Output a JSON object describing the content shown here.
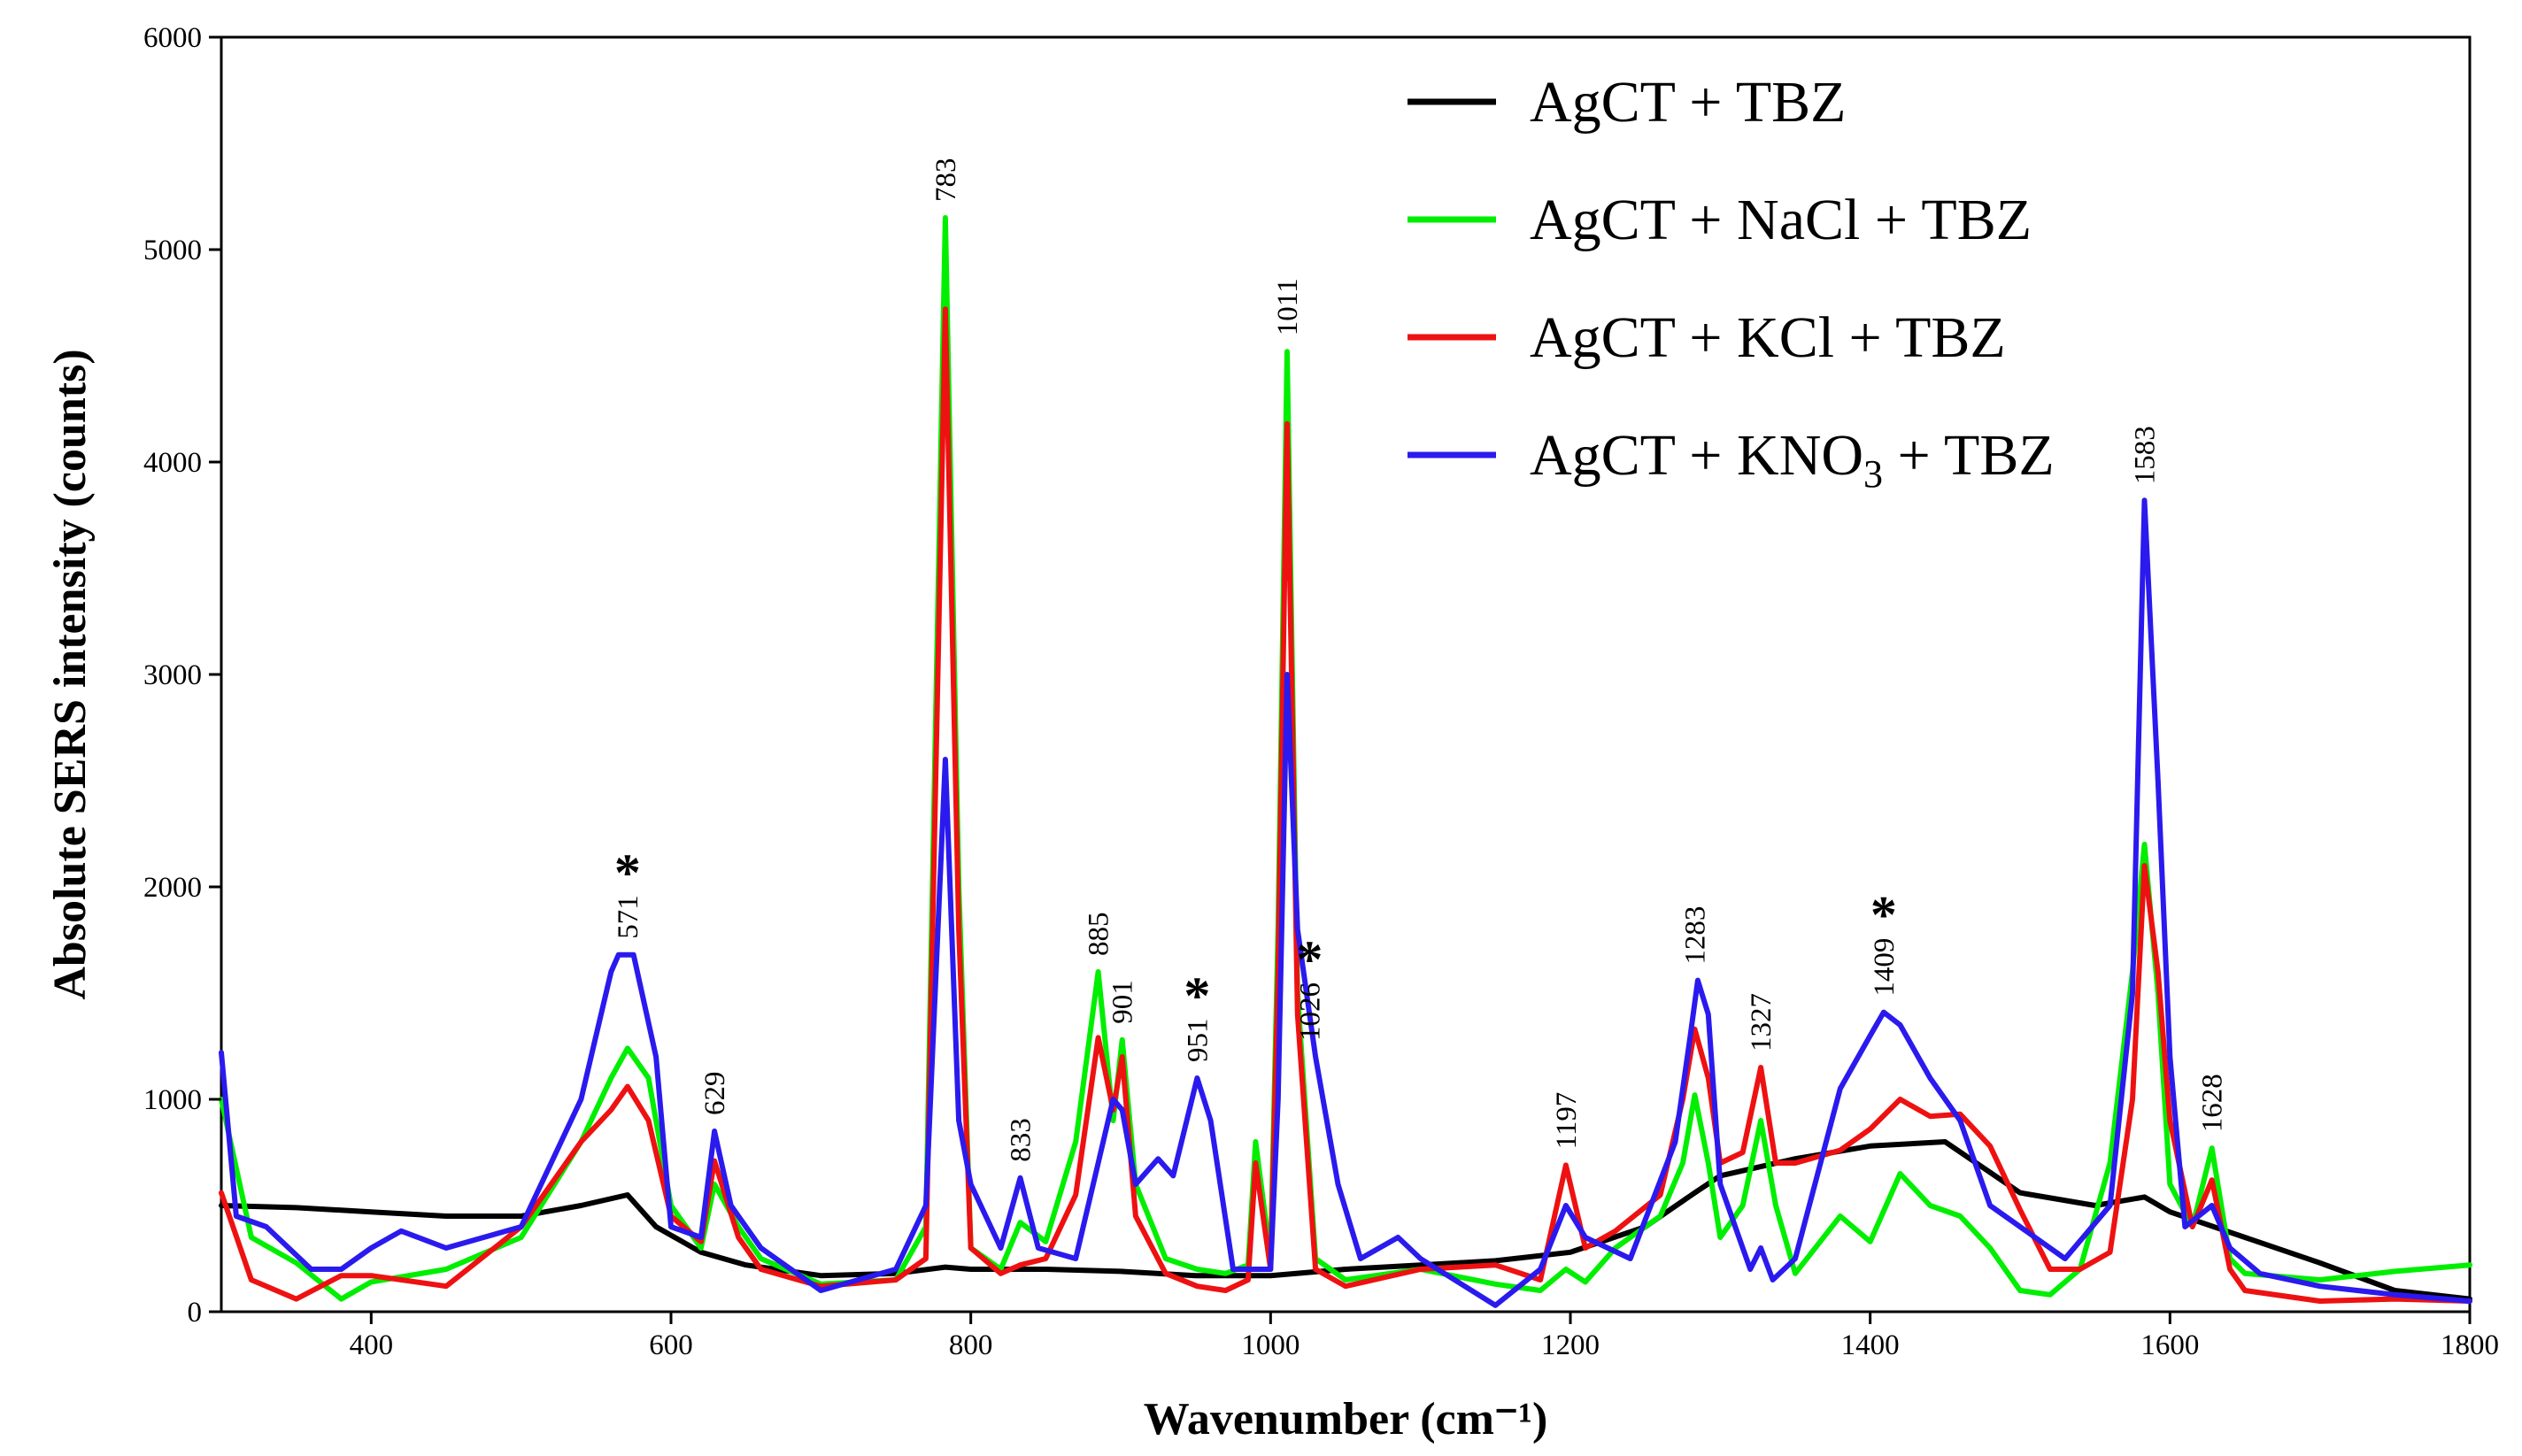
{
  "chart_data": {
    "type": "line",
    "title": "",
    "xlabel": "Wavenumber (cm⁻¹)",
    "ylabel": "Absolute SERS intensity (counts)",
    "xlim": [
      300,
      1800
    ],
    "ylim": [
      0,
      6000
    ],
    "xticks": [
      400,
      600,
      800,
      1000,
      1200,
      1400,
      1600,
      1800
    ],
    "yticks": [
      0,
      1000,
      2000,
      3000,
      4000,
      5000,
      6000
    ],
    "legend_position": "top-right",
    "colors": {
      "black": "#000000",
      "green": "#00ee00",
      "red": "#ee1111",
      "blue": "#2a1aee"
    },
    "legend": [
      {
        "color_key": "black",
        "main": "AgCT + TBZ",
        "sub": "",
        "tail": ""
      },
      {
        "color_key": "green",
        "main": "AgCT + NaCl + TBZ",
        "sub": "",
        "tail": ""
      },
      {
        "color_key": "red",
        "main": "AgCT + KCl + TBZ",
        "sub": "",
        "tail": ""
      },
      {
        "color_key": "blue",
        "main": "AgCT + KNO",
        "sub": "3",
        "tail": " + TBZ"
      }
    ],
    "series": [
      {
        "name": "AgCT + TBZ",
        "color_key": "black",
        "x": [
          300,
          350,
          400,
          450,
          500,
          540,
          571,
          590,
          620,
          650,
          700,
          750,
          783,
          800,
          850,
          900,
          950,
          1000,
          1050,
          1100,
          1150,
          1200,
          1250,
          1283,
          1300,
          1350,
          1400,
          1450,
          1500,
          1550,
          1583,
          1600,
          1650,
          1700,
          1750,
          1800
        ],
        "y": [
          500,
          490,
          470,
          450,
          450,
          500,
          550,
          400,
          280,
          220,
          170,
          180,
          210,
          200,
          200,
          190,
          170,
          170,
          200,
          220,
          240,
          280,
          400,
          560,
          640,
          720,
          780,
          800,
          560,
          500,
          540,
          470,
          350,
          230,
          100,
          60
        ]
      },
      {
        "name": "AgCT + NaCl + TBZ",
        "color_key": "green",
        "x": [
          300,
          320,
          350,
          380,
          400,
          450,
          500,
          540,
          560,
          571,
          585,
          600,
          620,
          629,
          645,
          660,
          700,
          750,
          770,
          783,
          792,
          800,
          820,
          833,
          850,
          870,
          885,
          895,
          901,
          910,
          930,
          951,
          970,
          985,
          990,
          1000,
          1005,
          1011,
          1018,
          1030,
          1050,
          1100,
          1150,
          1180,
          1197,
          1210,
          1230,
          1260,
          1275,
          1283,
          1292,
          1300,
          1315,
          1327,
          1337,
          1350,
          1380,
          1400,
          1420,
          1440,
          1460,
          1480,
          1500,
          1520,
          1540,
          1560,
          1575,
          1583,
          1592,
          1600,
          1615,
          1628,
          1640,
          1650,
          1700,
          1750,
          1800
        ],
        "y": [
          1000,
          350,
          230,
          60,
          140,
          200,
          350,
          800,
          1100,
          1240,
          1100,
          500,
          300,
          600,
          400,
          250,
          130,
          150,
          400,
          5150,
          2000,
          300,
          200,
          420,
          330,
          800,
          1600,
          900,
          1280,
          600,
          250,
          200,
          180,
          220,
          800,
          250,
          1800,
          4520,
          1500,
          250,
          150,
          200,
          130,
          100,
          200,
          140,
          300,
          450,
          700,
          1020,
          700,
          350,
          500,
          900,
          500,
          180,
          450,
          330,
          650,
          500,
          450,
          300,
          100,
          80,
          200,
          700,
          1600,
          2200,
          1500,
          600,
          400,
          770,
          250,
          180,
          150,
          190,
          220
        ]
      },
      {
        "name": "AgCT + KCl + TBZ",
        "color_key": "red",
        "x": [
          300,
          320,
          350,
          380,
          400,
          450,
          500,
          540,
          560,
          571,
          585,
          600,
          620,
          629,
          645,
          660,
          700,
          750,
          770,
          783,
          792,
          800,
          820,
          833,
          850,
          870,
          885,
          895,
          901,
          910,
          930,
          951,
          970,
          985,
          990,
          1000,
          1005,
          1011,
          1018,
          1030,
          1050,
          1100,
          1150,
          1180,
          1197,
          1210,
          1230,
          1260,
          1275,
          1283,
          1292,
          1300,
          1315,
          1327,
          1337,
          1350,
          1380,
          1400,
          1420,
          1440,
          1460,
          1480,
          1500,
          1520,
          1540,
          1560,
          1575,
          1583,
          1592,
          1600,
          1615,
          1628,
          1640,
          1650,
          1700,
          1750,
          1800
        ],
        "y": [
          560,
          150,
          60,
          170,
          170,
          120,
          400,
          800,
          950,
          1060,
          900,
          450,
          330,
          710,
          350,
          200,
          120,
          150,
          250,
          4720,
          1800,
          300,
          180,
          220,
          250,
          550,
          1290,
          950,
          1200,
          450,
          180,
          120,
          100,
          150,
          700,
          200,
          1600,
          4180,
          1400,
          200,
          120,
          200,
          220,
          150,
          690,
          300,
          380,
          550,
          1000,
          1330,
          1100,
          700,
          750,
          1150,
          700,
          700,
          760,
          860,
          1000,
          920,
          930,
          780,
          480,
          200,
          200,
          280,
          1000,
          2100,
          1600,
          900,
          400,
          620,
          200,
          100,
          50,
          60,
          50
        ]
      },
      {
        "name": "AgCT + KNO3 + TBZ",
        "color_key": "blue",
        "x": [
          300,
          310,
          330,
          360,
          380,
          400,
          420,
          450,
          500,
          540,
          560,
          565,
          575,
          590,
          600,
          620,
          629,
          640,
          660,
          700,
          750,
          770,
          783,
          792,
          800,
          820,
          833,
          845,
          870,
          885,
          895,
          901,
          910,
          925,
          935,
          951,
          960,
          975,
          990,
          1000,
          1005,
          1011,
          1018,
          1030,
          1045,
          1060,
          1085,
          1100,
          1150,
          1180,
          1197,
          1210,
          1240,
          1270,
          1280,
          1285,
          1292,
          1300,
          1320,
          1327,
          1335,
          1350,
          1380,
          1400,
          1409,
          1420,
          1440,
          1460,
          1480,
          1500,
          1530,
          1560,
          1575,
          1583,
          1592,
          1600,
          1610,
          1628,
          1640,
          1660,
          1700,
          1750,
          1800
        ],
        "y": [
          1220,
          450,
          400,
          200,
          200,
          300,
          380,
          300,
          400,
          1000,
          1600,
          1680,
          1680,
          1200,
          400,
          350,
          850,
          500,
          300,
          100,
          200,
          500,
          2600,
          900,
          600,
          300,
          630,
          300,
          250,
          700,
          1000,
          950,
          600,
          720,
          640,
          1100,
          900,
          200,
          200,
          200,
          1000,
          3000,
          1800,
          1200,
          600,
          250,
          350,
          250,
          30,
          200,
          500,
          350,
          250,
          800,
          1300,
          1560,
          1400,
          600,
          200,
          300,
          150,
          250,
          1050,
          1300,
          1410,
          1350,
          1100,
          900,
          500,
          400,
          250,
          500,
          1500,
          3820,
          2500,
          1200,
          400,
          500,
          300,
          180,
          120,
          80,
          50
        ]
      }
    ],
    "peak_labels": [
      {
        "x": 571,
        "text": "571",
        "star": "*"
      },
      {
        "x": 629,
        "text": "629",
        "star": ""
      },
      {
        "x": 783,
        "text": "783",
        "star": ""
      },
      {
        "x": 833,
        "text": "833",
        "star": ""
      },
      {
        "x": 885,
        "text": "885",
        "star": ""
      },
      {
        "x": 901,
        "text": "901",
        "star": ""
      },
      {
        "x": 951,
        "text": "951",
        "star": "*"
      },
      {
        "x": 1011,
        "text": "1011",
        "star": ""
      },
      {
        "x": 1026,
        "text": "1026",
        "star": "*"
      },
      {
        "x": 1197,
        "text": "1197",
        "star": ""
      },
      {
        "x": 1283,
        "text": "1283",
        "star": ""
      },
      {
        "x": 1327,
        "text": "1327",
        "star": ""
      },
      {
        "x": 1409,
        "text": "1409",
        "star": "*"
      },
      {
        "x": 1583,
        "text": "1583",
        "star": ""
      },
      {
        "x": 1628,
        "text": "1628",
        "star": ""
      }
    ]
  }
}
